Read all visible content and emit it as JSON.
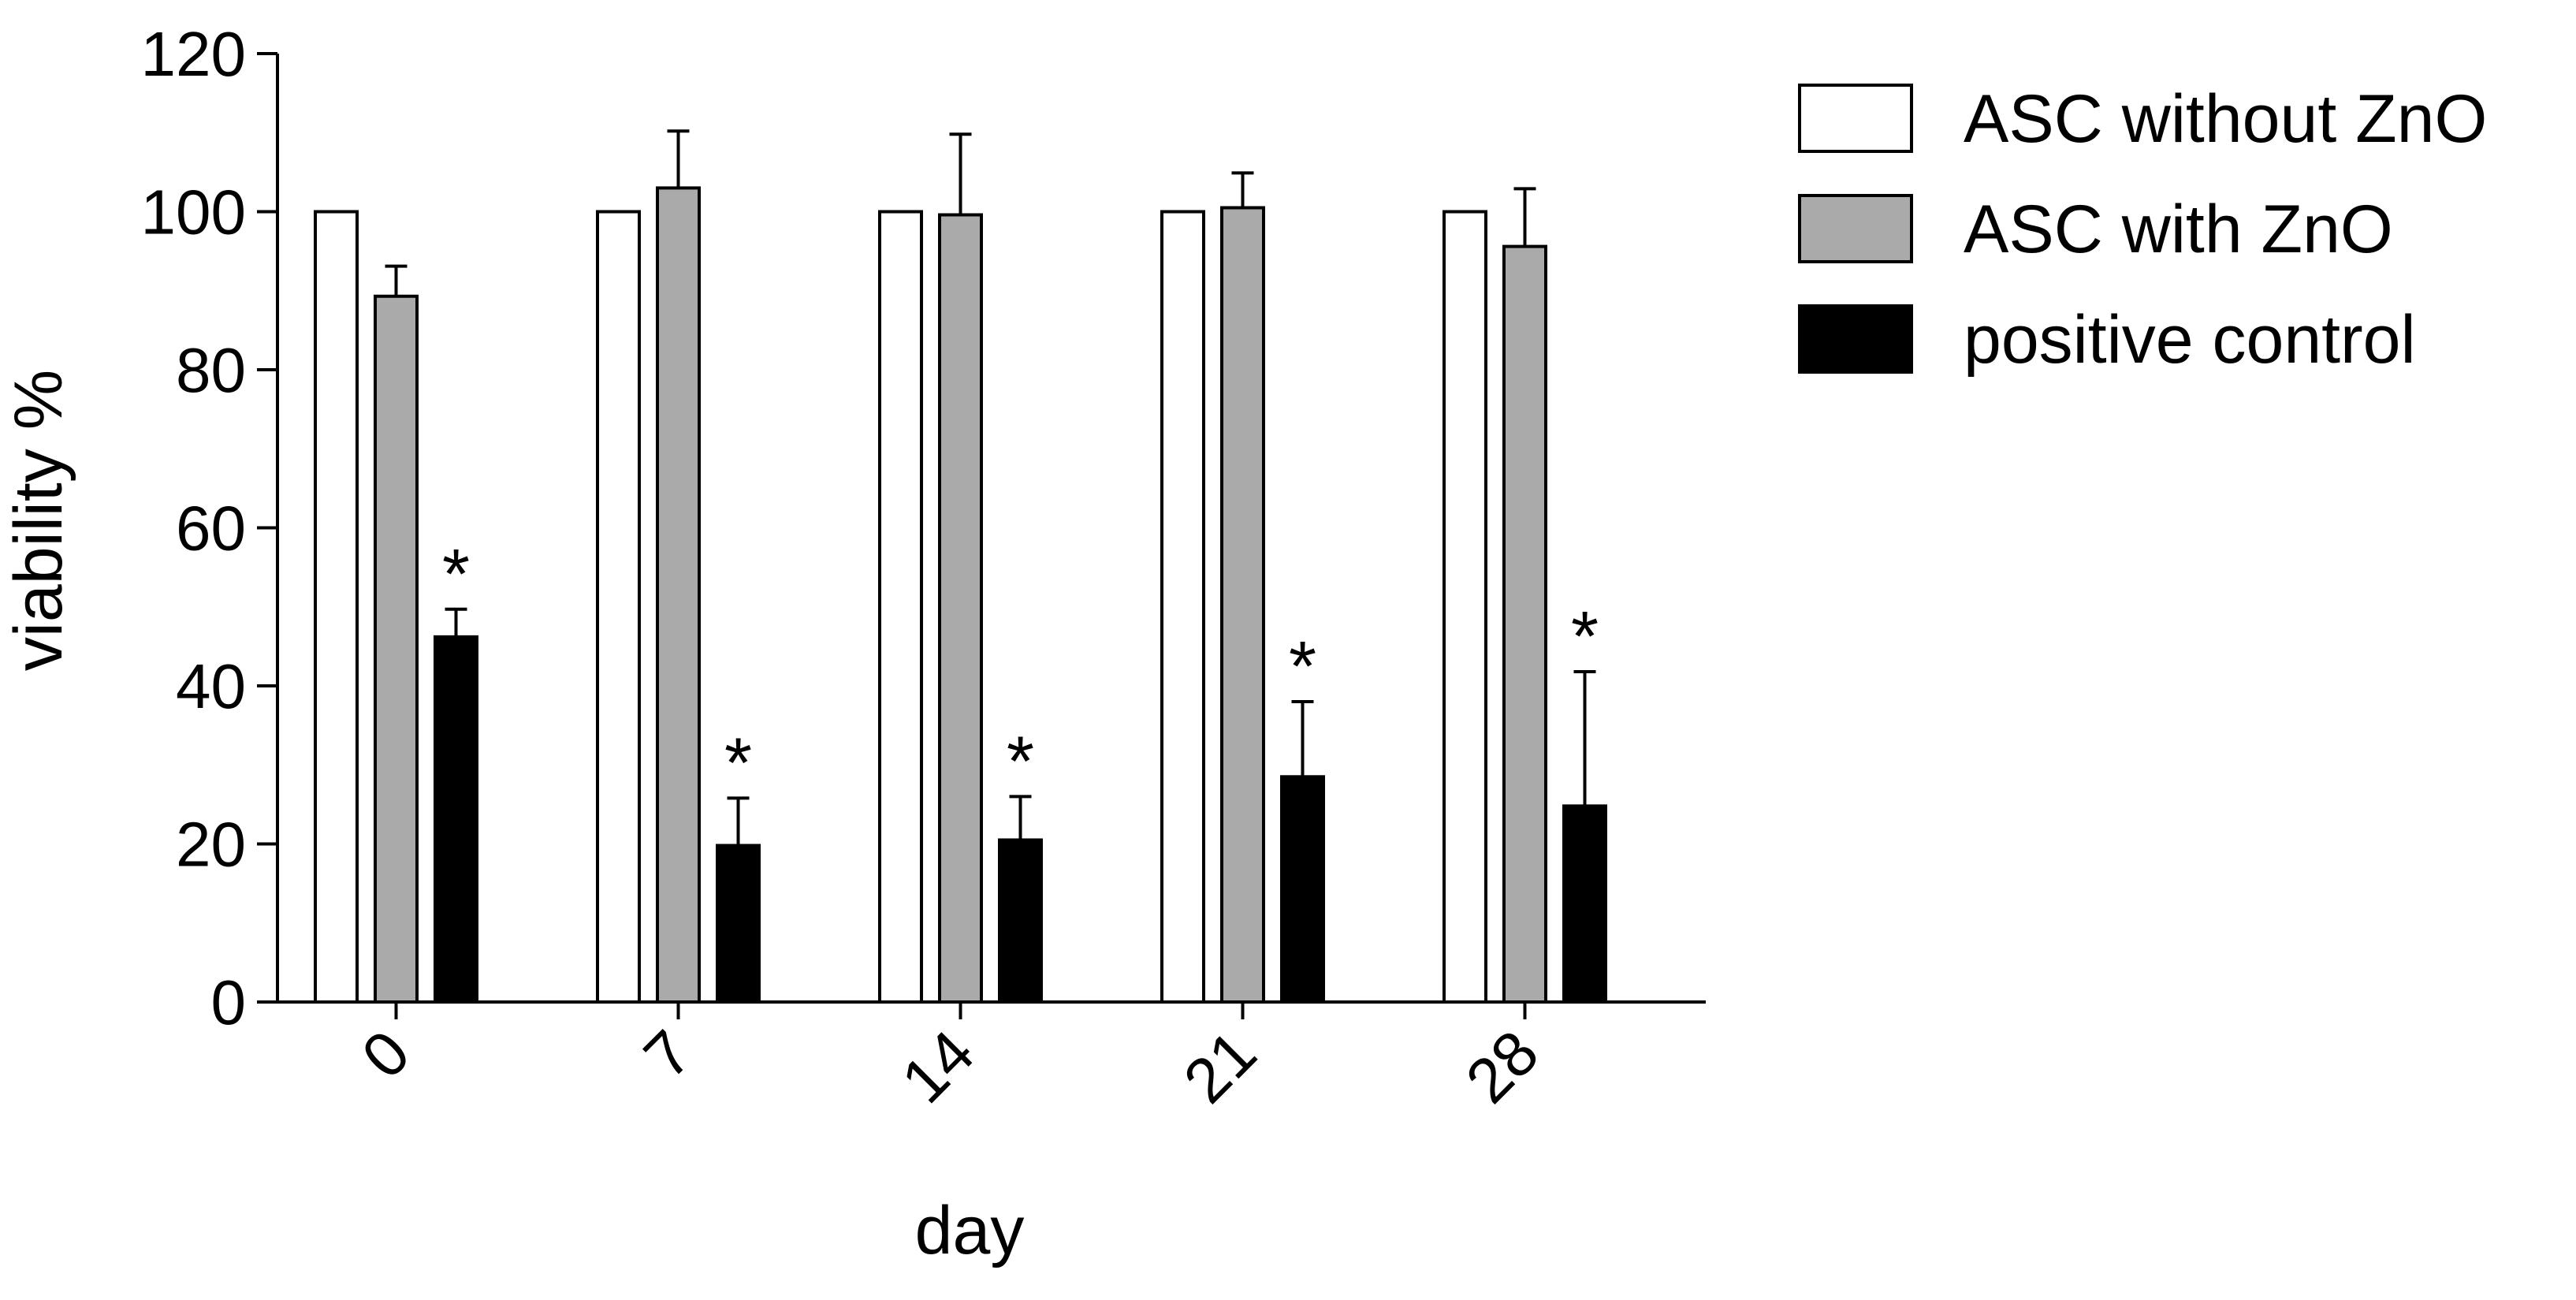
{
  "chart_data": {
    "type": "bar",
    "xlabel": "day",
    "ylabel": "viability %",
    "ylim": [
      0,
      120
    ],
    "yticks": [
      "0",
      "20",
      "40",
      "60",
      "80",
      "100",
      "120"
    ],
    "categories": [
      "0",
      "7",
      "14",
      "21",
      "28"
    ],
    "series": [
      {
        "name": "ASC without ZnO",
        "color": "#ffffff",
        "values": [
          100,
          100,
          100,
          100,
          100
        ],
        "errors": [
          0,
          0,
          0,
          0,
          0
        ]
      },
      {
        "name": "ASC with ZnO",
        "color": "#aaaaaa",
        "values": [
          89.3,
          103.0,
          99.6,
          100.5,
          95.6
        ],
        "errors": [
          3.8,
          7.2,
          10.2,
          4.4,
          7.3
        ]
      },
      {
        "name": "positive control",
        "color": "#000000",
        "values": [
          46.2,
          19.8,
          20.5,
          28.5,
          24.8
        ],
        "errors": [
          3.5,
          6.0,
          5.5,
          9.5,
          17.0
        ]
      }
    ],
    "significance": {
      "series": "positive control",
      "marks": [
        "*",
        "*",
        "*",
        "*",
        "*"
      ]
    },
    "legend_position": "top-right",
    "grid": false
  }
}
